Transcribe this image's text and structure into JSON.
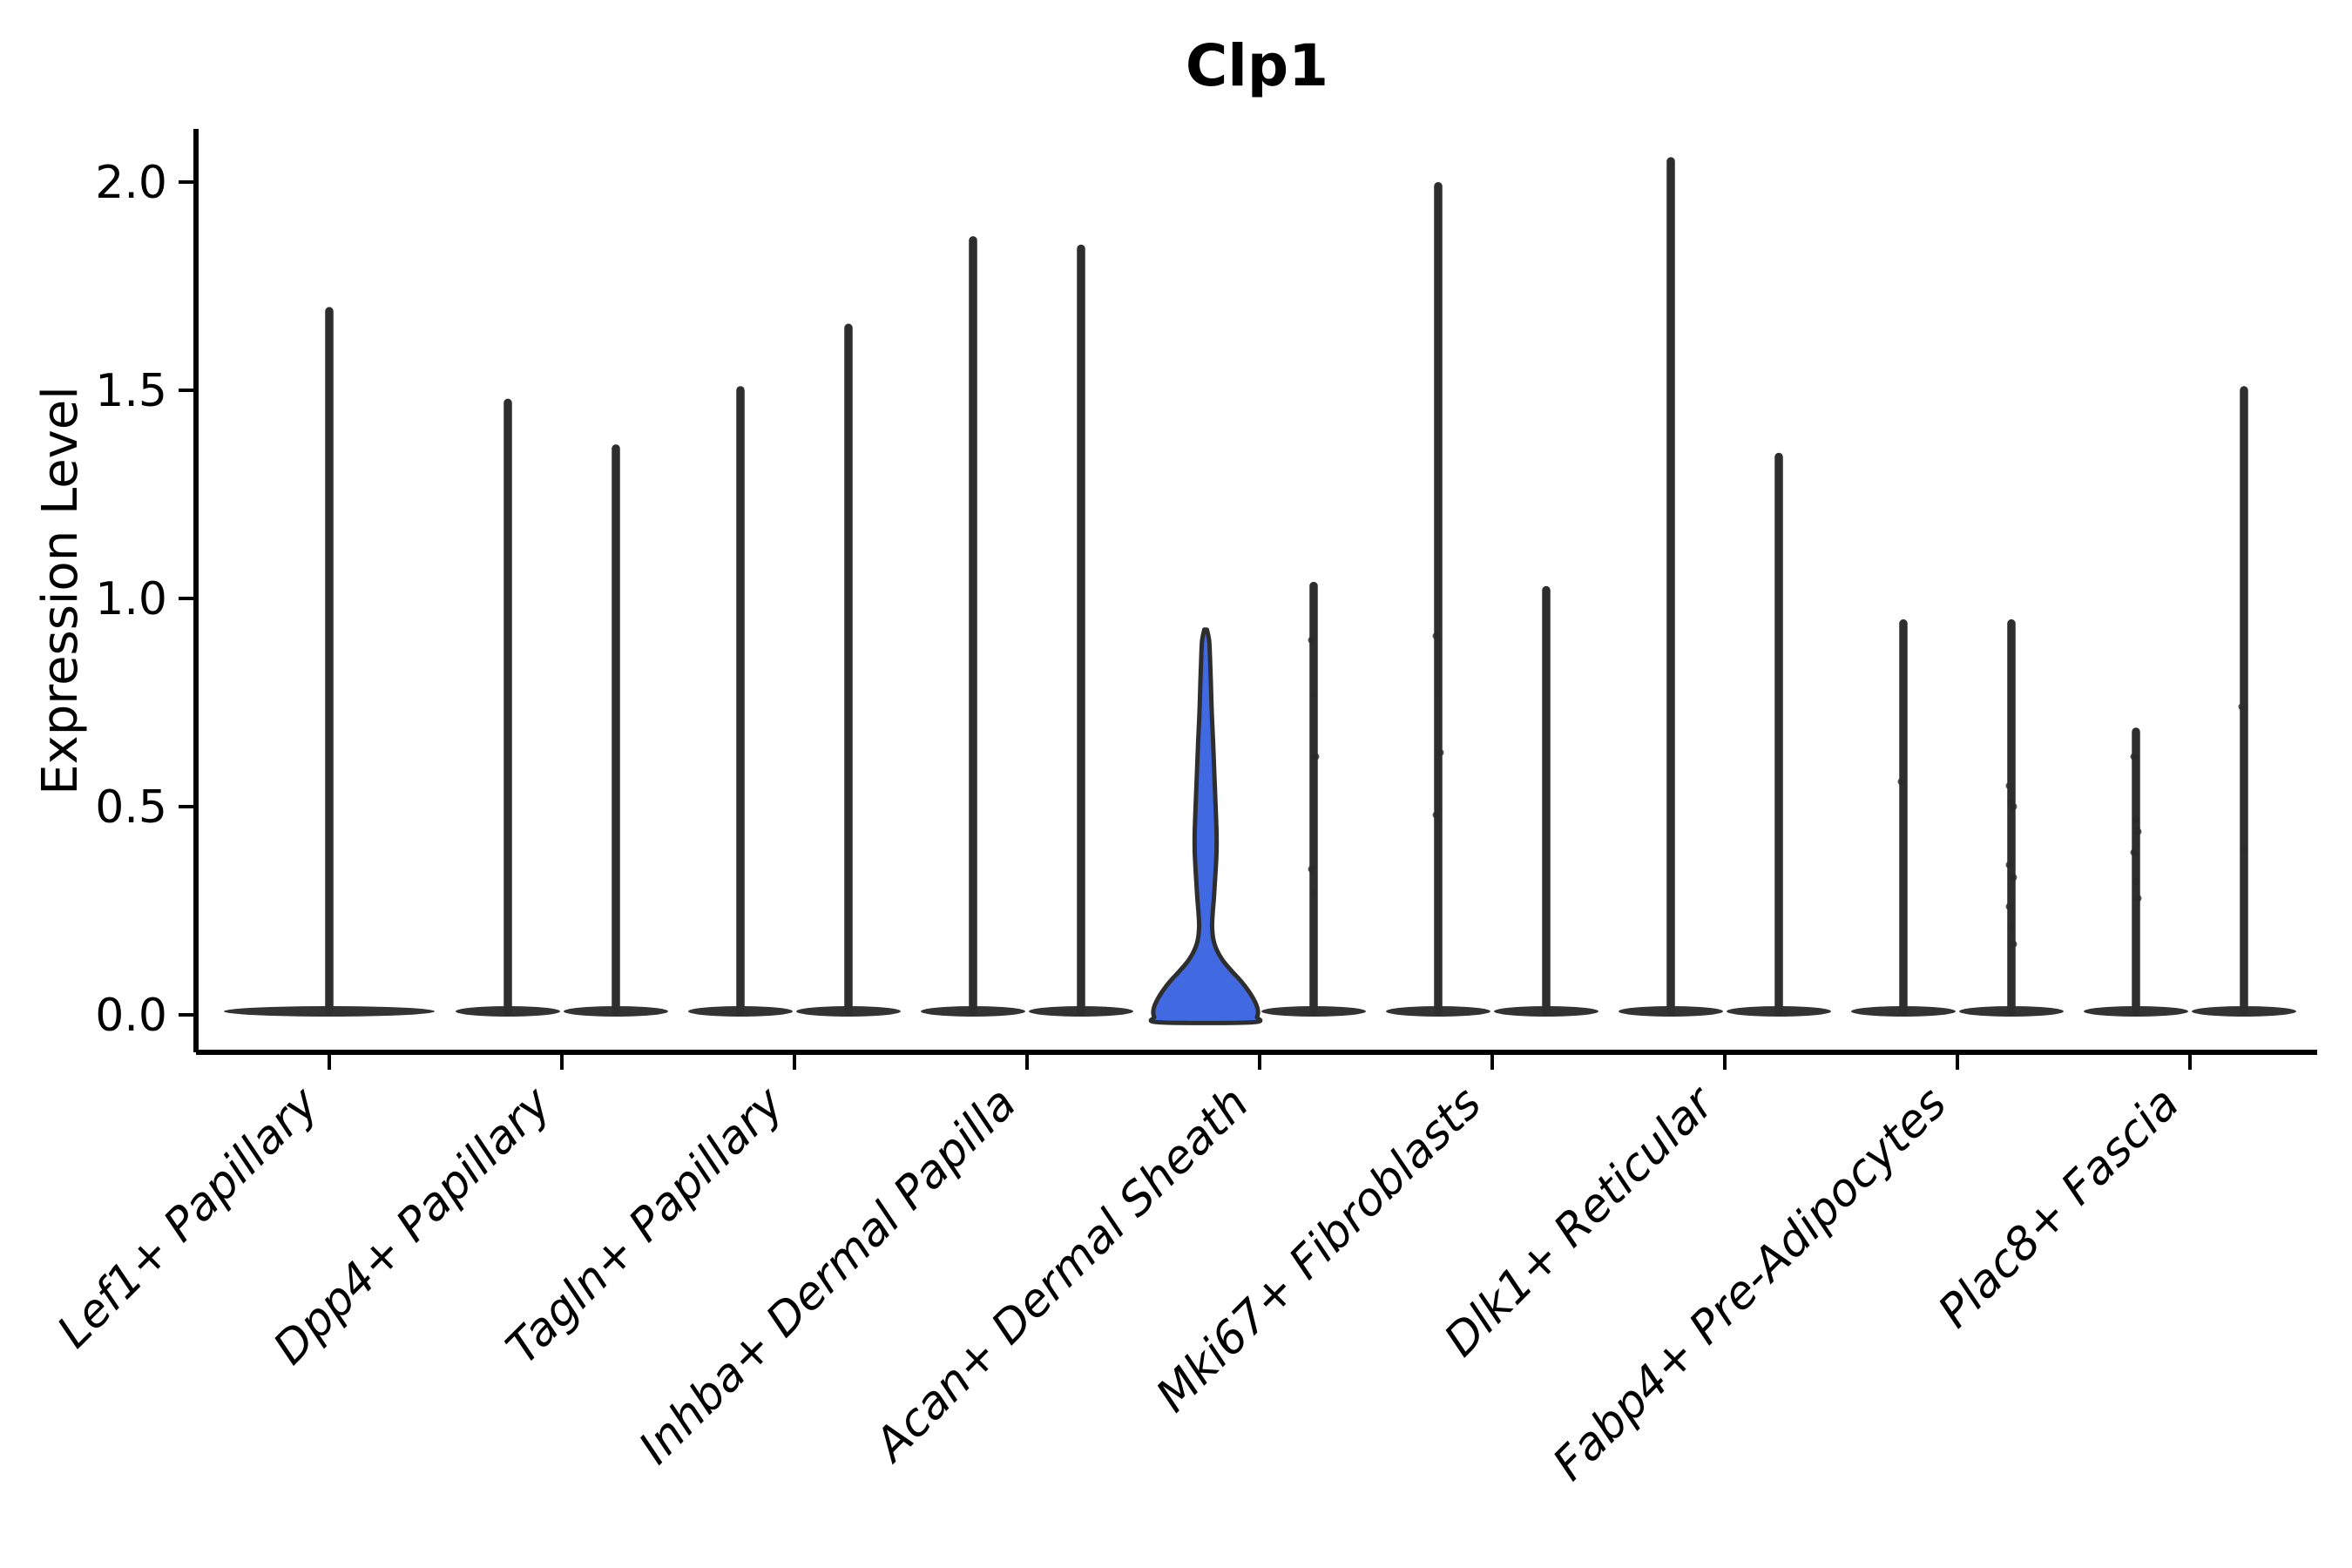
{
  "chart_data": {
    "type": "violin",
    "title": "Clp1",
    "ylabel": "Expression Level",
    "xlabel": "",
    "ytick_labels": [
      "0.0",
      "0.5",
      "1.0",
      "1.5",
      "2.0"
    ],
    "ytick_values": [
      0.0,
      0.5,
      1.0,
      1.5,
      2.0
    ],
    "ylim": [
      -0.09,
      2.13
    ],
    "grid": false,
    "legend": "none",
    "categories": [
      "Lef1+ Papillary",
      "Dpp4+ Papillary",
      "Tagln+ Papillary",
      "Inhba+ Dermal Papilla",
      "Acan+ Dermal Sheath",
      "Mki67+ Fibroblasts",
      "Dlk1+ Reticular",
      "Fabp4+ Pre-Adipocytes",
      "Plac8+ Fascia"
    ],
    "violins": [
      {
        "category": "Lef1+ Papillary",
        "slot": "center",
        "max": 1.69,
        "filled": false,
        "jitter": []
      },
      {
        "category": "Dpp4+ Papillary",
        "slot": "left",
        "max": 1.47,
        "filled": false,
        "jitter": []
      },
      {
        "category": "Dpp4+ Papillary",
        "slot": "right",
        "max": 1.36,
        "filled": false,
        "jitter": []
      },
      {
        "category": "Tagln+ Papillary",
        "slot": "left",
        "max": 1.5,
        "filled": false,
        "jitter": []
      },
      {
        "category": "Tagln+ Papillary",
        "slot": "right",
        "max": 1.65,
        "filled": false,
        "jitter": []
      },
      {
        "category": "Inhba+ Dermal Papilla",
        "slot": "left",
        "max": 1.86,
        "filled": false,
        "jitter": []
      },
      {
        "category": "Inhba+ Dermal Papilla",
        "slot": "right",
        "max": 1.84,
        "filled": false,
        "jitter": []
      },
      {
        "category": "Acan+ Dermal Sheath",
        "slot": "left",
        "max": 0.92,
        "filled": true,
        "profile": [
          [
            0.925,
            1.5
          ],
          [
            0.9,
            4
          ],
          [
            0.86,
            5
          ],
          [
            0.8,
            6
          ],
          [
            0.73,
            7
          ],
          [
            0.66,
            8.5
          ],
          [
            0.58,
            10
          ],
          [
            0.5,
            11.5
          ],
          [
            0.44,
            12.5
          ],
          [
            0.39,
            12.5
          ],
          [
            0.33,
            11
          ],
          [
            0.28,
            9.5
          ],
          [
            0.24,
            8
          ],
          [
            0.21,
            7.5
          ],
          [
            0.18,
            9
          ],
          [
            0.155,
            13
          ],
          [
            0.13,
            20
          ],
          [
            0.105,
            30
          ],
          [
            0.08,
            41
          ],
          [
            0.055,
            50
          ],
          [
            0.03,
            57
          ],
          [
            0.01,
            60
          ],
          [
            -0.005,
            59
          ],
          [
            -0.018,
            53
          ]
        ],
        "jitter": []
      },
      {
        "category": "Acan+ Dermal Sheath",
        "slot": "right",
        "max": 1.03,
        "filled": false,
        "jitter": [
          0.9,
          0.77,
          0.62,
          0.35,
          0.29
        ]
      },
      {
        "category": "Mki67+ Fibroblasts",
        "slot": "left",
        "max": 1.99,
        "filled": false,
        "jitter": [
          0.91,
          0.77,
          0.63,
          0.48
        ]
      },
      {
        "category": "Mki67+ Fibroblasts",
        "slot": "right",
        "max": 1.02,
        "filled": false,
        "jitter": []
      },
      {
        "category": "Dlk1+ Reticular",
        "slot": "left",
        "max": 2.05,
        "filled": false,
        "jitter": []
      },
      {
        "category": "Dlk1+ Reticular",
        "slot": "right",
        "max": 1.34,
        "filled": false,
        "jitter": []
      },
      {
        "category": "Fabp4+ Pre-Adipocytes",
        "slot": "left",
        "max": 0.94,
        "filled": false,
        "jitter": [
          0.56
        ]
      },
      {
        "category": "Fabp4+ Pre-Adipocytes",
        "slot": "right",
        "max": 0.94,
        "filled": false,
        "jitter": [
          0.55,
          0.51,
          0.5,
          0.36,
          0.335,
          0.33,
          0.26,
          0.21,
          0.17
        ]
      },
      {
        "category": "Plac8+ Fascia",
        "slot": "left",
        "max": 0.68,
        "filled": false,
        "jitter": [
          0.62,
          0.47,
          0.44,
          0.39,
          0.32,
          0.28
        ]
      },
      {
        "category": "Plac8+ Fascia",
        "slot": "right",
        "max": 1.5,
        "filled": false,
        "jitter": [
          0.74,
          0.4
        ]
      }
    ],
    "colors": {
      "background": "#ffffff",
      "highlight_fill": "#4169e1",
      "violin_stroke": "#2e2e2e",
      "spike_color": "#2e2e2e",
      "base_lens_color": "#333333",
      "jitter_color": "#2b2b2b",
      "axis_color": "#000000",
      "text_color": "#000000"
    }
  }
}
